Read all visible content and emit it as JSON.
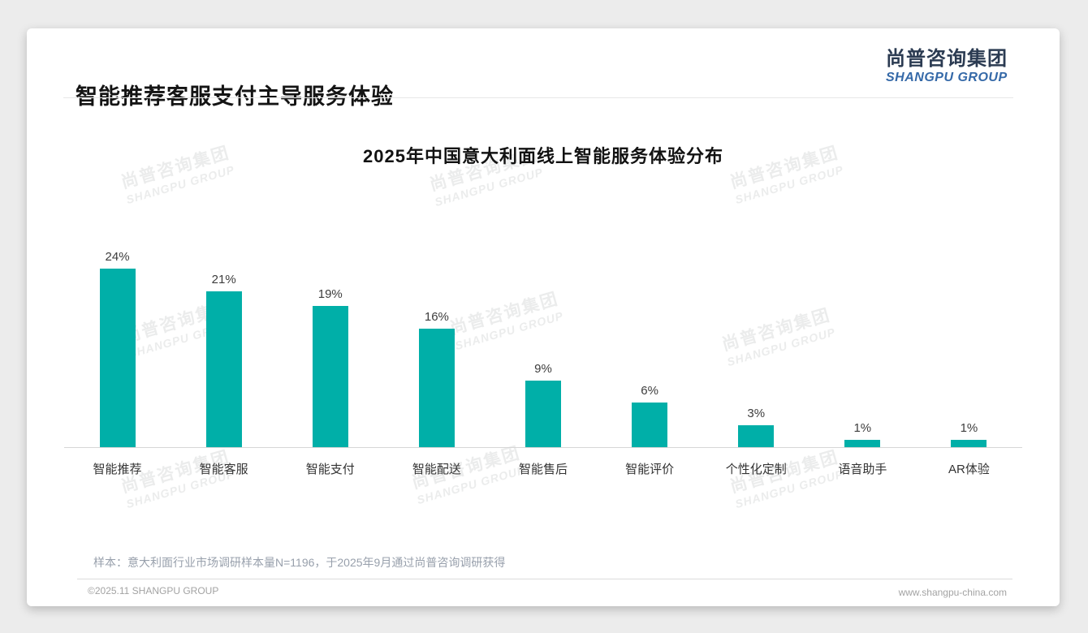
{
  "header": {
    "title": "智能推荐客服支付主导服务体验"
  },
  "logo": {
    "cn": "尚普咨询集团",
    "en": "SHANGPU GROUP"
  },
  "watermark": {
    "line1": "尚普咨询集团",
    "line2": "SHANGPU GROUP"
  },
  "chart_data": {
    "type": "bar",
    "title": "2025年中国意大利面线上智能服务体验分布",
    "categories": [
      "智能推荐",
      "智能客服",
      "智能支付",
      "智能配送",
      "智能售后",
      "智能评价",
      "个性化定制",
      "语音助手",
      "AR体验"
    ],
    "values": [
      24,
      21,
      19,
      16,
      9,
      6,
      3,
      1,
      1
    ],
    "value_labels": [
      "24%",
      "21%",
      "19%",
      "16%",
      "9%",
      "6%",
      "3%",
      "1%",
      "1%"
    ],
    "unit": "%",
    "xlabel": "",
    "ylabel": "",
    "ylim": [
      0,
      26
    ],
    "grid": false,
    "legend": false,
    "bar_color": "#00afa8"
  },
  "note": "样本：意大利面行业市场调研样本量N=1196，于2025年9月通过尚普咨询调研获得",
  "footer": {
    "copyright": "©2025.11 SHANGPU GROUP",
    "website": "www.shangpu-china.com"
  }
}
